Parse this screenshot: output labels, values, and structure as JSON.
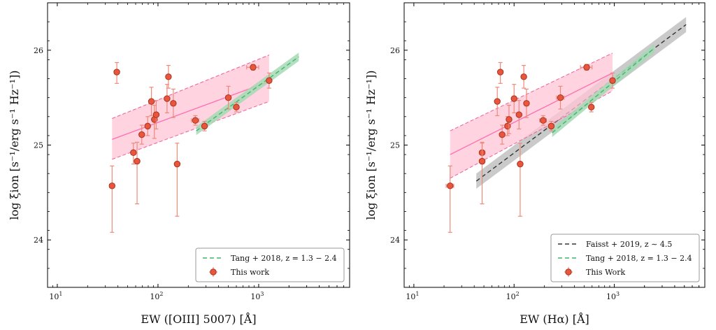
{
  "chart_data": [
    {
      "type": "scatter",
      "xlabel": "EW ([OIII] 5007) [Å]",
      "ylabel": "log ξion [s⁻¹/erg s⁻¹ Hz⁻¹])",
      "xscale": "log",
      "xlim": [
        8,
        8000
      ],
      "ylim": [
        23.5,
        26.5
      ],
      "xticks": [
        {
          "v": 10,
          "base": "10",
          "exp": "1"
        },
        {
          "v": 100,
          "base": "10",
          "exp": "2"
        },
        {
          "v": 1000,
          "base": "10",
          "exp": "3"
        }
      ],
      "yticks": [
        24,
        25,
        26
      ],
      "legend": {
        "placement": "lower-right",
        "entries": [
          {
            "label": "Tang + 2018,  z = 1.3 − 2.4",
            "kind": "green-dash"
          },
          {
            "label": "This work",
            "kind": "point"
          }
        ]
      },
      "points": [
        {
          "x": 35,
          "y": 24.57,
          "yerr": [
            0.49,
            0.21
          ],
          "xerr": [
            2,
            2
          ]
        },
        {
          "x": 39,
          "y": 25.77,
          "yerr": [
            0.12,
            0.1
          ],
          "xerr": [
            2,
            2
          ]
        },
        {
          "x": 57,
          "y": 24.92,
          "yerr": [
            0.12,
            0.1
          ],
          "xerr": [
            3,
            3
          ]
        },
        {
          "x": 62,
          "y": 24.83,
          "yerr": [
            0.45,
            0.2
          ],
          "xerr": [
            3,
            3
          ]
        },
        {
          "x": 69,
          "y": 25.11,
          "yerr": [
            0.1,
            0.1
          ],
          "xerr": [
            3,
            3
          ]
        },
        {
          "x": 79,
          "y": 25.2,
          "yerr": [
            0.1,
            0.1
          ],
          "xerr": [
            3,
            3
          ]
        },
        {
          "x": 86,
          "y": 25.46,
          "yerr": [
            0.15,
            0.15
          ],
          "xerr": [
            4,
            4
          ]
        },
        {
          "x": 92,
          "y": 25.27,
          "yerr": [
            0.2,
            0.15
          ],
          "xerr": [
            4,
            4
          ]
        },
        {
          "x": 96,
          "y": 25.32,
          "yerr": [
            0.15,
            0.15
          ],
          "xerr": [
            4,
            4
          ]
        },
        {
          "x": 123,
          "y": 25.49,
          "yerr": [
            0.15,
            0.15
          ],
          "xerr": [
            5,
            5
          ]
        },
        {
          "x": 127,
          "y": 25.72,
          "yerr": [
            0.12,
            0.12
          ],
          "xerr": [
            5,
            5
          ]
        },
        {
          "x": 142,
          "y": 25.44,
          "yerr": [
            0.15,
            0.15
          ],
          "xerr": [
            6,
            6
          ]
        },
        {
          "x": 155,
          "y": 24.8,
          "yerr": [
            0.55,
            0.22
          ],
          "xerr": [
            6,
            6
          ]
        },
        {
          "x": 235,
          "y": 25.26,
          "yerr": [
            0.05,
            0.05
          ],
          "xerr": [
            20,
            20
          ]
        },
        {
          "x": 290,
          "y": 25.2,
          "yerr": [
            0.05,
            0.05
          ],
          "xerr": [
            15,
            15
          ]
        },
        {
          "x": 500,
          "y": 25.5,
          "yerr": [
            0.12,
            0.12
          ],
          "xerr": [
            30,
            30
          ]
        },
        {
          "x": 600,
          "y": 25.4,
          "yerr": [
            0.05,
            0.05
          ],
          "xerr": [
            30,
            30
          ]
        },
        {
          "x": 880,
          "y": 25.82,
          "yerr": [
            0.03,
            0.03
          ],
          "xerr": [
            120,
            120
          ]
        },
        {
          "x": 1270,
          "y": 25.68,
          "yerr": [
            0.08,
            0.08
          ],
          "xerr": [
            60,
            60
          ]
        }
      ],
      "fit": {
        "x": [
          35,
          1270
        ],
        "y": [
          25.06,
          25.67
        ],
        "lower": [
          24.85,
          25.46
        ],
        "upper": [
          25.28,
          25.95
        ]
      },
      "tang": {
        "x": [
          240,
          2500
        ],
        "y": [
          25.15,
          25.93
        ],
        "band": 0.045
      },
      "faisst": null
    },
    {
      "type": "scatter",
      "xlabel": "EW (Hα) [Å]",
      "ylabel": "log ξion [s⁻¹/erg s⁻¹ Hz⁻¹])",
      "xscale": "log",
      "xlim": [
        8,
        8000
      ],
      "ylim": [
        23.5,
        26.5
      ],
      "xticks": [
        {
          "v": 10,
          "base": "10",
          "exp": "1"
        },
        {
          "v": 100,
          "base": "10",
          "exp": "2"
        },
        {
          "v": 1000,
          "base": "10",
          "exp": "3"
        }
      ],
      "yticks": [
        24,
        25,
        26
      ],
      "legend": {
        "placement": "lower-right",
        "entries": [
          {
            "label": "Faisst + 2019,  z ∼ 4.5",
            "kind": "black-dash"
          },
          {
            "label": "Tang + 2018,  z = 1.3 − 2.4",
            "kind": "green-dash"
          },
          {
            "label": "This Work",
            "kind": "point"
          }
        ]
      },
      "points": [
        {
          "x": 23,
          "y": 24.57,
          "yerr": [
            0.49,
            0.21
          ],
          "xerr": [
            2,
            2
          ]
        },
        {
          "x": 48,
          "y": 24.92,
          "yerr": [
            0.12,
            0.1
          ],
          "xerr": [
            3,
            3
          ]
        },
        {
          "x": 48,
          "y": 24.83,
          "yerr": [
            0.45,
            0.2
          ],
          "xerr": [
            3,
            3
          ]
        },
        {
          "x": 68,
          "y": 25.46,
          "yerr": [
            0.15,
            0.15
          ],
          "xerr": [
            3,
            3
          ]
        },
        {
          "x": 73,
          "y": 25.77,
          "yerr": [
            0.12,
            0.1
          ],
          "xerr": [
            3,
            3
          ]
        },
        {
          "x": 76,
          "y": 25.11,
          "yerr": [
            0.1,
            0.1
          ],
          "xerr": [
            3,
            3
          ]
        },
        {
          "x": 86,
          "y": 25.2,
          "yerr": [
            0.1,
            0.1
          ],
          "xerr": [
            4,
            4
          ]
        },
        {
          "x": 89,
          "y": 25.27,
          "yerr": [
            0.15,
            0.15
          ],
          "xerr": [
            4,
            4
          ]
        },
        {
          "x": 100,
          "y": 25.49,
          "yerr": [
            0.15,
            0.15
          ],
          "xerr": [
            4,
            4
          ]
        },
        {
          "x": 112,
          "y": 25.32,
          "yerr": [
            0.15,
            0.15
          ],
          "xerr": [
            5,
            5
          ]
        },
        {
          "x": 115,
          "y": 24.8,
          "yerr": [
            0.55,
            0.22
          ],
          "xerr": [
            5,
            5
          ]
        },
        {
          "x": 125,
          "y": 25.72,
          "yerr": [
            0.12,
            0.12
          ],
          "xerr": [
            5,
            5
          ]
        },
        {
          "x": 133,
          "y": 25.44,
          "yerr": [
            0.15,
            0.15
          ],
          "xerr": [
            6,
            6
          ]
        },
        {
          "x": 195,
          "y": 25.26,
          "yerr": [
            0.05,
            0.05
          ],
          "xerr": [
            15,
            15
          ]
        },
        {
          "x": 235,
          "y": 25.2,
          "yerr": [
            0.05,
            0.05
          ],
          "xerr": [
            15,
            15
          ]
        },
        {
          "x": 290,
          "y": 25.5,
          "yerr": [
            0.12,
            0.12
          ],
          "xerr": [
            25,
            25
          ]
        },
        {
          "x": 530,
          "y": 25.82,
          "yerr": [
            0.03,
            0.03
          ],
          "xerr": [
            70,
            70
          ]
        },
        {
          "x": 590,
          "y": 25.4,
          "yerr": [
            0.05,
            0.05
          ],
          "xerr": [
            30,
            30
          ]
        },
        {
          "x": 960,
          "y": 25.68,
          "yerr": [
            0.08,
            0.08
          ],
          "xerr": [
            50,
            50
          ]
        }
      ],
      "fit": {
        "x": [
          23,
          960
        ],
        "y": [
          24.9,
          25.76
        ],
        "lower": [
          24.65,
          25.57
        ],
        "upper": [
          25.15,
          25.97
        ]
      },
      "tang": {
        "x": [
          240,
          2500
        ],
        "y": [
          25.13,
          26.02
        ],
        "band": 0.045
      },
      "faisst": {
        "x": [
          42,
          5200
        ],
        "y": [
          24.62,
          26.27
        ],
        "band": 0.08
      }
    }
  ],
  "colors": {
    "point_fill": "#e8563e",
    "point_edge": "#a8321f",
    "errorbar": "#ee8a7a",
    "fit_line": "#ff6eb0",
    "fit_band": "#ffc4d4",
    "fit_band_edge": "#f0609a",
    "tang": "#3cb86a",
    "tang_band": "#a3d9b4",
    "faisst": "#333333",
    "faisst_band": "#bdbdbd"
  }
}
